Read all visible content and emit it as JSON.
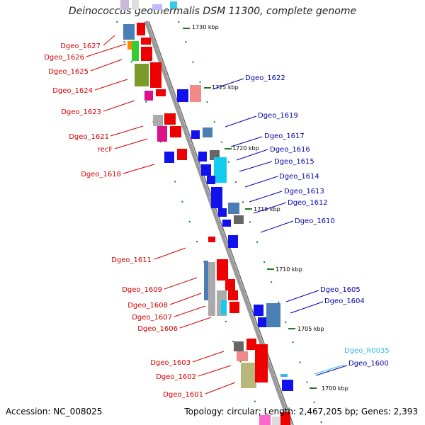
{
  "title": "Deinococcus geothermalis DSM 11300, complete genome",
  "footer": {
    "accession": "Accession: NC_008025",
    "summary": "Topology: circular; Length: 2,467,205 bp; Genes: 2,393"
  },
  "kbp_labels": [
    "1730 kbp",
    "1725 kbp",
    "1720 kbp",
    "1715 kbp",
    "1710 kbp",
    "1705 kbp",
    "1700 kbp"
  ],
  "colors": {
    "left_label": "#d40000",
    "right_label": "#0000aa",
    "rna_label": "#33bbee",
    "backbone": "#8a8a8a",
    "tick": "#1a7a1a"
  },
  "left_labels": [
    "Dgeo_1627",
    "Dgeo_1626",
    "Dgeo_1625",
    "Dgeo_1624",
    "Dgeo_1623",
    "Dgeo_1621",
    "recF",
    "Dgeo_1618",
    "Dgeo_1611",
    "Dgeo_1609",
    "Dgeo_1608",
    "Dgeo_1607",
    "Dgeo_1606",
    "Dgeo_1603",
    "Dgeo_1602",
    "Dgeo_1601"
  ],
  "right_labels": [
    "Dgeo_1622",
    "Dgeo_1619",
    "Dgeo_1617",
    "Dgeo_1616",
    "Dgeo_1615",
    "Dgeo_1614",
    "Dgeo_1613",
    "Dgeo_1612",
    "Dgeo_1610",
    "Dgeo_1605",
    "Dgeo_1604",
    "Dgeo_R0035",
    "Dgeo_1600"
  ]
}
